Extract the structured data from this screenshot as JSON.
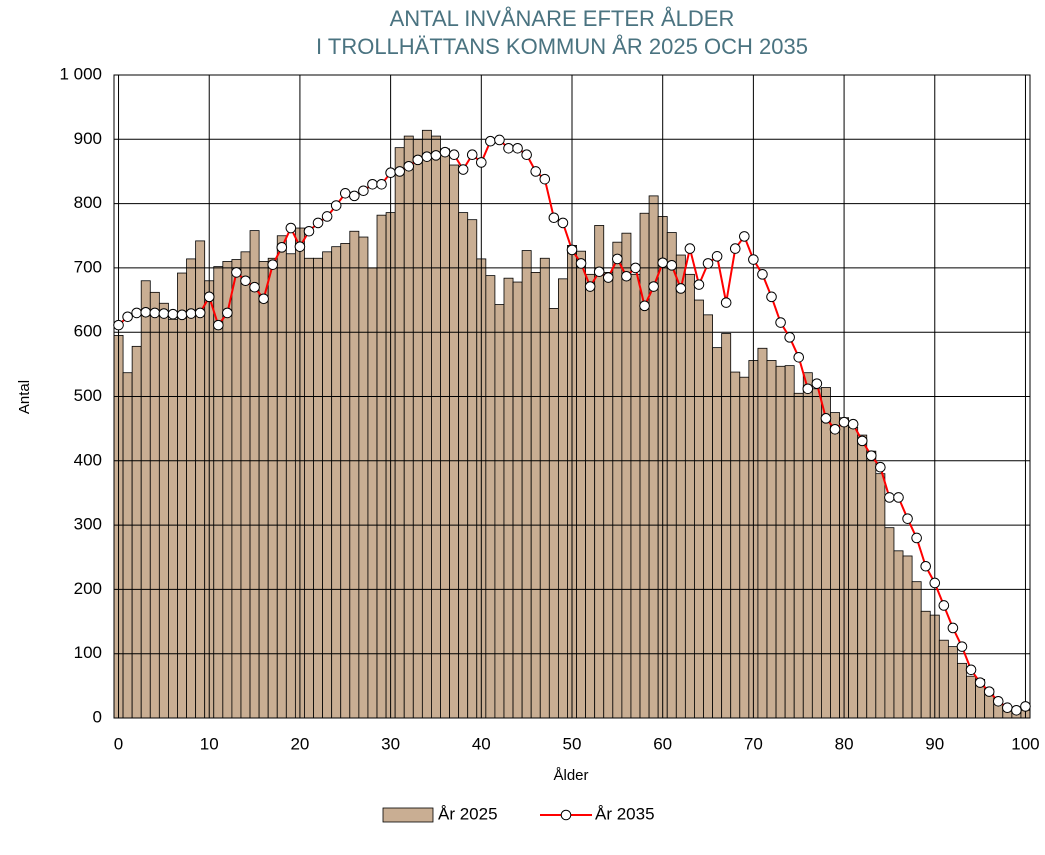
{
  "chart_data": {
    "type": "bar",
    "title": [
      "ANTAL INVÅNARE EFTER ÅLDER",
      "I TROLLHÄTTANS KOMMUN ÅR 2025 OCH 2035"
    ],
    "x_label": "Ålder",
    "y_label": "Antal",
    "x": [
      0,
      1,
      2,
      3,
      4,
      5,
      6,
      7,
      8,
      9,
      10,
      11,
      12,
      13,
      14,
      15,
      16,
      17,
      18,
      19,
      20,
      21,
      22,
      23,
      24,
      25,
      26,
      27,
      28,
      29,
      30,
      31,
      32,
      33,
      34,
      35,
      36,
      37,
      38,
      39,
      40,
      41,
      42,
      43,
      44,
      45,
      46,
      47,
      48,
      49,
      50,
      51,
      52,
      53,
      54,
      55,
      56,
      57,
      58,
      59,
      60,
      61,
      62,
      63,
      64,
      65,
      66,
      67,
      68,
      69,
      70,
      71,
      72,
      73,
      74,
      75,
      76,
      77,
      78,
      79,
      80,
      81,
      82,
      83,
      84,
      85,
      86,
      87,
      88,
      89,
      90,
      91,
      92,
      93,
      94,
      95,
      96,
      97,
      98,
      99,
      100
    ],
    "series": [
      {
        "name": "År 2025",
        "type": "bar",
        "color": "#c9ae93",
        "values": [
          595,
          537,
          578,
          680,
          662,
          645,
          620,
          692,
          714,
          742,
          680,
          702,
          710,
          713,
          725,
          758,
          710,
          715,
          750,
          722,
          762,
          715,
          715,
          725,
          733,
          738,
          757,
          748,
          700,
          782,
          786,
          887,
          905,
          900,
          914,
          905,
          885,
          860,
          786,
          775,
          714,
          688,
          643,
          684,
          678,
          727,
          693,
          715,
          637,
          683,
          735,
          726,
          690,
          766,
          693,
          740,
          754,
          690,
          785,
          812,
          780,
          755,
          720,
          690,
          650,
          627,
          576,
          598,
          538,
          530,
          556,
          575,
          556,
          547,
          548,
          505,
          537,
          512,
          514,
          475,
          467,
          452,
          440,
          415,
          380,
          296,
          260,
          252,
          212,
          166,
          160,
          121,
          111,
          85,
          65,
          60,
          45,
          22,
          18,
          10,
          12
        ]
      },
      {
        "name": "År 2035",
        "type": "line",
        "color": "#ff0000",
        "values": [
          611,
          624,
          630,
          631,
          630,
          629,
          628,
          627,
          629,
          630,
          655,
          611,
          630,
          693,
          680,
          670,
          652,
          705,
          732,
          762,
          733,
          757,
          770,
          780,
          797,
          816,
          812,
          820,
          830,
          830,
          848,
          850,
          858,
          868,
          873,
          875,
          880,
          876,
          853,
          876,
          864,
          897,
          899,
          886,
          886,
          876,
          850,
          838,
          778,
          770,
          728,
          707,
          671,
          694,
          685,
          714,
          687,
          700,
          641,
          671,
          708,
          704,
          668,
          730,
          674,
          707,
          718,
          646,
          730,
          749,
          713,
          690,
          655,
          615,
          592,
          561,
          512,
          520,
          466,
          449,
          460,
          457,
          431,
          408,
          390,
          343,
          343,
          310,
          280,
          236,
          210,
          175,
          140,
          111,
          75,
          55,
          41,
          26,
          16,
          12,
          18
        ]
      }
    ],
    "xlim": [
      -0.5,
      100.5
    ],
    "xticks": [
      0,
      10,
      20,
      30,
      40,
      50,
      60,
      70,
      80,
      90,
      100
    ],
    "ylim": [
      0,
      1000
    ],
    "yticks": [
      0,
      100,
      200,
      300,
      400,
      500,
      600,
      700,
      800,
      900,
      {
        "value": 1000,
        "label": "1 000"
      }
    ],
    "grid": true,
    "legend": "bottom"
  }
}
